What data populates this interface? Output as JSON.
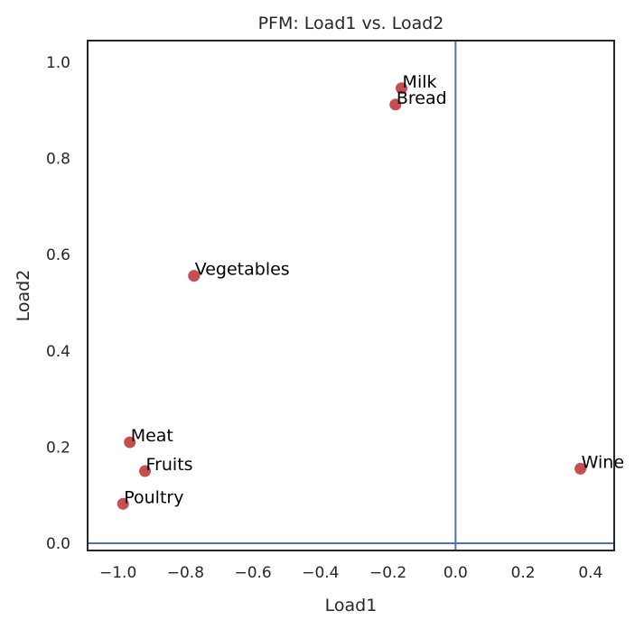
{
  "chart_data": {
    "type": "scatter",
    "title": "PFM: Load1 vs. Load2",
    "xlabel": "Load1",
    "ylabel": "Load2",
    "xlim": [
      -1.09,
      0.47
    ],
    "ylim": [
      -0.015,
      1.045
    ],
    "xticks": [
      -1.0,
      -0.8,
      -0.6,
      -0.4,
      -0.2,
      0.0,
      0.2,
      0.4
    ],
    "xtick_labels": [
      "−1.0",
      "−0.8",
      "−0.6",
      "−0.4",
      "−0.2",
      "0.0",
      "0.2",
      "0.4"
    ],
    "yticks": [
      0.0,
      0.2,
      0.4,
      0.6,
      0.8,
      1.0
    ],
    "ytick_labels": [
      "0.0",
      "0.2",
      "0.4",
      "0.6",
      "0.8",
      "1.0"
    ],
    "grid": false,
    "reference_lines": {
      "x": 0.0,
      "y": 0.0
    },
    "points": [
      {
        "label": "Milk",
        "x": -0.16,
        "y": 0.946
      },
      {
        "label": "Bread",
        "x": -0.178,
        "y": 0.912
      },
      {
        "label": "Vegetables",
        "x": -0.775,
        "y": 0.556
      },
      {
        "label": "Meat",
        "x": -0.965,
        "y": 0.21
      },
      {
        "label": "Fruits",
        "x": -0.92,
        "y": 0.15
      },
      {
        "label": "Poultry",
        "x": -0.985,
        "y": 0.082
      },
      {
        "label": "Wine",
        "x": 0.37,
        "y": 0.155
      }
    ],
    "colors": {
      "points": "#c44e52",
      "reference_lines": "#4c72b0",
      "frame": "#262626"
    }
  }
}
